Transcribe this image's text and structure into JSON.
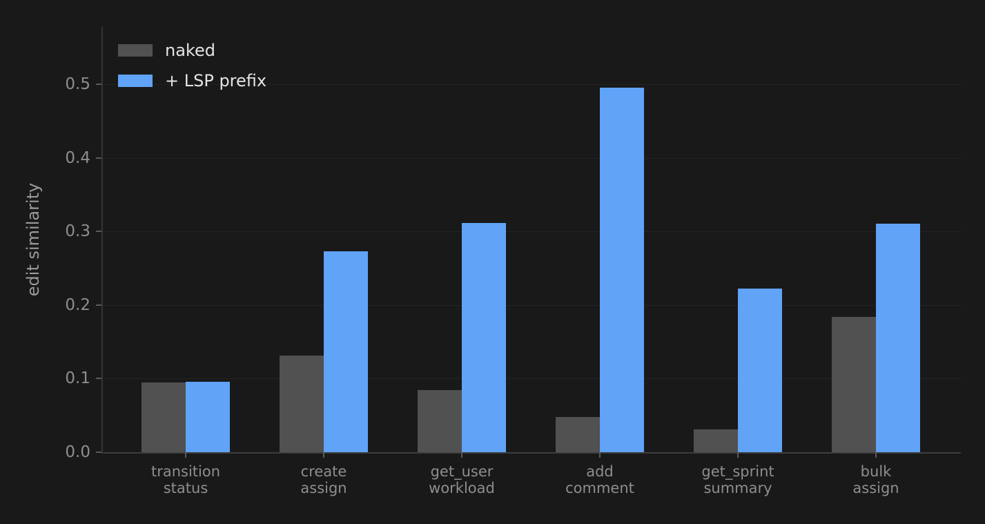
{
  "chart_data": {
    "type": "bar",
    "title": "",
    "xlabel": "",
    "ylabel": "edit similarity",
    "categories": [
      "transition\nstatus",
      "create\nassign",
      "get_user\nworkload",
      "add\ncomment",
      "get_sprint\nsummary",
      "bulk\nassign"
    ],
    "series": [
      {
        "name": "naked",
        "color": "#515151",
        "values": [
          0.095,
          0.131,
          0.084,
          0.048,
          0.031,
          0.184
        ]
      },
      {
        "name": "+ LSP prefix",
        "color": "#60a3f7",
        "values": [
          0.096,
          0.273,
          0.312,
          0.495,
          0.222,
          0.311
        ]
      }
    ],
    "yticks": [
      0.0,
      0.1,
      0.2,
      0.3,
      0.4,
      0.5
    ],
    "ytick_labels": [
      "0.0",
      "0.1",
      "0.2",
      "0.3",
      "0.4",
      "0.5"
    ],
    "ylim": [
      0,
      0.578
    ],
    "grid": "horizontal",
    "legend_position": "upper left",
    "background_color": "#191919",
    "grid_color": "#242424",
    "tick_label_color": "#8e8e8e",
    "legend_text_color": "#e4e4e4"
  }
}
